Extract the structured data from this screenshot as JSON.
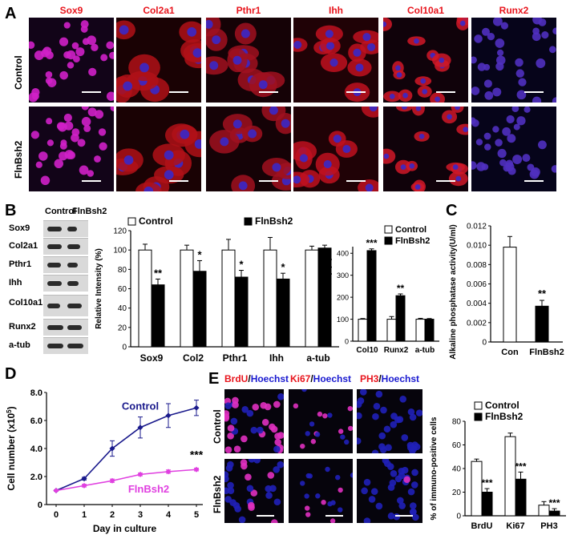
{
  "panel_letters": {
    "A": "A",
    "B": "B",
    "C": "C",
    "D": "D",
    "E": "E"
  },
  "panelA": {
    "markers": [
      "Sox9",
      "Col2a1",
      "Pthr1",
      "Ihh",
      "Col10a1",
      "Runx2"
    ],
    "rows": [
      "Control",
      "FlnBsh2"
    ]
  },
  "panelB_blot": {
    "headers": [
      "Control",
      "FlnBsh2"
    ],
    "proteins": [
      "Sox9",
      "Col2a1",
      "Pthr1",
      "Ihh",
      "Col10a1",
      "Runx2",
      "a-tub"
    ]
  },
  "panelE": {
    "stains": [
      {
        "marker": "BrdU",
        "sep": "/",
        "counter": "Hoechst"
      },
      {
        "marker": "Ki67",
        "sep": "/",
        "counter": "Hoechst"
      },
      {
        "marker": "PH3",
        "sep": "/",
        "counter": "Hoechst"
      }
    ],
    "rows": [
      "Control",
      "FlnBsh2"
    ]
  },
  "colors": {
    "red": "#e8141c",
    "blue": "#1a1ad0",
    "magenta": "#e040e0",
    "navy": "#1a1a8c"
  },
  "chart_data": [
    {
      "id": "B1",
      "type": "bar",
      "categories": [
        "Sox9",
        "Col2",
        "Pthr1",
        "Ihh",
        "a-tub"
      ],
      "series": [
        {
          "name": "Control",
          "values": [
            100,
            100,
            100,
            100,
            100
          ],
          "errors": [
            6,
            5,
            11,
            13,
            4
          ]
        },
        {
          "name": "FlnBsh2",
          "values": [
            64,
            78,
            72,
            70,
            102
          ],
          "errors": [
            6,
            11,
            7,
            6,
            3
          ]
        }
      ],
      "significance": [
        "**",
        "*",
        "*",
        "*",
        ""
      ],
      "ylabel": "Relative Intensity (%)",
      "ylim": [
        0,
        120
      ],
      "yticks": [
        0,
        20,
        40,
        60,
        80,
        100,
        120
      ],
      "legend": "top"
    },
    {
      "id": "B2",
      "type": "bar",
      "categories": [
        "Col10",
        "Runx2",
        "a-tub"
      ],
      "series": [
        {
          "name": "Control",
          "values": [
            100,
            100,
            100
          ],
          "errors": [
            3,
            12,
            4
          ]
        },
        {
          "name": "FlnBsh2",
          "values": [
            412,
            207,
            100
          ],
          "errors": [
            8,
            8,
            3
          ]
        }
      ],
      "significance": [
        "***",
        "**",
        ""
      ],
      "ylabel": "Relative Intensity (%)",
      "ylim": [
        0,
        430
      ],
      "yticks": [
        0,
        100,
        200,
        300,
        400
      ],
      "legend": "top-right"
    },
    {
      "id": "C",
      "type": "bar",
      "categories": [
        "Con",
        "FlnBsh2"
      ],
      "series": [
        {
          "values": [
            0.0098,
            0.0037
          ],
          "errors": [
            0.0011,
            0.0006
          ]
        }
      ],
      "significance": [
        "",
        "**"
      ],
      "ylabel": "Alkaline phosphatase activity(U/ml)",
      "ylim": [
        0,
        0.012
      ],
      "yticks": [
        0,
        0.002,
        0.004,
        0.006,
        0.008,
        0.01,
        0.012
      ],
      "ytick_labels": [
        "0",
        "0.002",
        "0.004",
        "0.006",
        "0.008",
        "0.010",
        "0.012"
      ]
    },
    {
      "id": "D",
      "type": "line",
      "x": [
        0,
        1,
        2,
        3,
        4,
        5
      ],
      "series": [
        {
          "name": "Control",
          "values": [
            1.0,
            1.85,
            4.0,
            5.5,
            6.35,
            6.9
          ],
          "errors": [
            0.05,
            0.1,
            0.55,
            0.75,
            0.85,
            0.55
          ],
          "color": "#1a1a8c"
        },
        {
          "name": "FlnBsh2",
          "values": [
            1.0,
            1.35,
            1.7,
            2.15,
            2.35,
            2.5
          ],
          "errors": [
            0.05,
            0.1,
            0.12,
            0.1,
            0.12,
            0.1
          ],
          "color": "#e040e0"
        }
      ],
      "significance": "***",
      "xlabel": "Day in culture",
      "ylabel": "Cell number (x10",
      "ylabel_sup": "5",
      "ylabel_end": ")",
      "ylim": [
        0,
        8
      ],
      "yticks": [
        0,
        2,
        4,
        6,
        8
      ],
      "ytick_labels": [
        "0",
        "2.0",
        "4.0",
        "6.0",
        "8.0"
      ]
    },
    {
      "id": "E",
      "type": "bar",
      "categories": [
        "BrdU",
        "Ki67",
        "PH3"
      ],
      "series": [
        {
          "name": "Control",
          "values": [
            46,
            67,
            9
          ],
          "errors": [
            2,
            3,
            3
          ]
        },
        {
          "name": "FlnBsh2",
          "values": [
            20,
            31,
            4
          ],
          "errors": [
            3,
            6,
            2
          ]
        }
      ],
      "significance": [
        "***",
        "***",
        "***"
      ],
      "ylabel": "% of immuno-positive cells",
      "ylim": [
        0,
        80
      ],
      "yticks": [
        0,
        20,
        40,
        60,
        80
      ],
      "legend": "top"
    }
  ]
}
